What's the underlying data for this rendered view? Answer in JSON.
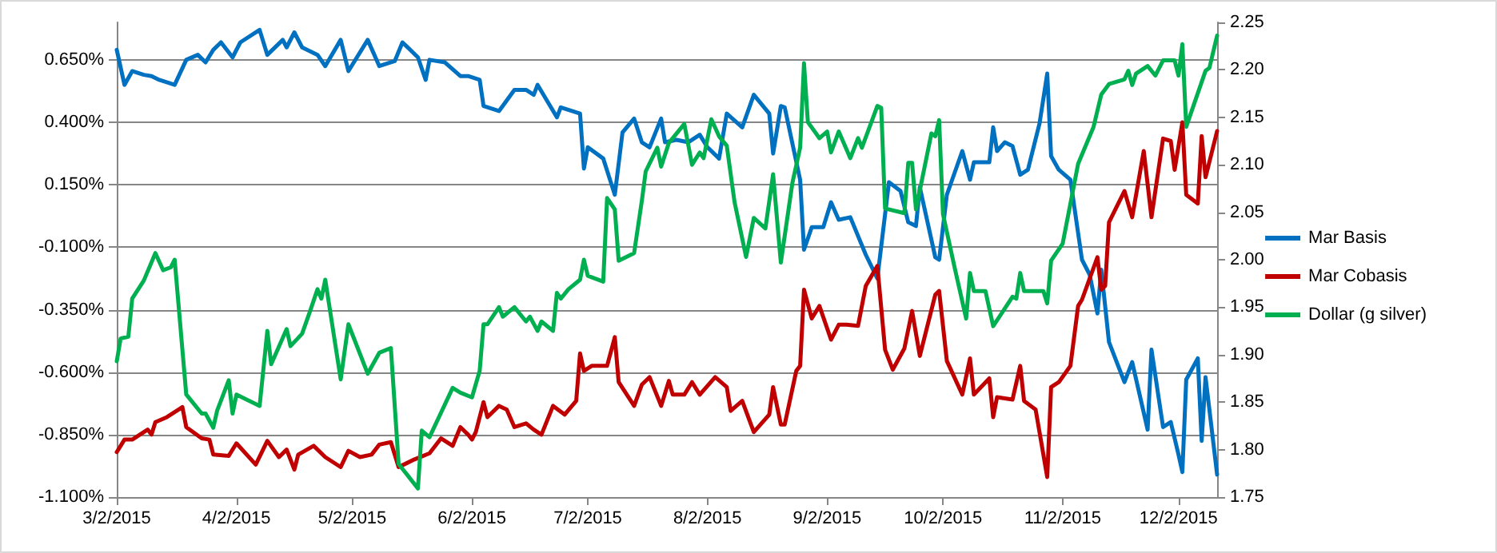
{
  "chart_data": {
    "type": "line",
    "marker": "none",
    "line_style": "solid",
    "grid": "y",
    "legend": "right",
    "xlim": [
      "2015-03-02",
      "2015-12-12"
    ],
    "xticks": [
      {
        "value": "2015-03-02",
        "label": "3/2/2015"
      },
      {
        "value": "2015-04-02",
        "label": "4/2/2015"
      },
      {
        "value": "2015-05-02",
        "label": "5/2/2015"
      },
      {
        "value": "2015-06-02",
        "label": "6/2/2015"
      },
      {
        "value": "2015-07-02",
        "label": "7/2/2015"
      },
      {
        "value": "2015-08-02",
        "label": "8/2/2015"
      },
      {
        "value": "2015-09-02",
        "label": "9/2/2015"
      },
      {
        "value": "2015-10-02",
        "label": "10/2/2015"
      },
      {
        "value": "2015-11-02",
        "label": "11/2/2015"
      },
      {
        "value": "2015-12-02",
        "label": "12/2/2015"
      }
    ],
    "ylim": [
      -1.1,
      0.8
    ],
    "yticks": [
      {
        "value": -1.1,
        "label": "-1.100%"
      },
      {
        "value": -0.85,
        "label": "-0.850%"
      },
      {
        "value": -0.6,
        "label": "-0.600%"
      },
      {
        "value": -0.35,
        "label": "-0.350%"
      },
      {
        "value": -0.1,
        "label": "-0.100%"
      },
      {
        "value": 0.15,
        "label": "0.150%"
      },
      {
        "value": 0.4,
        "label": "0.400%"
      },
      {
        "value": 0.65,
        "label": "0.650%"
      }
    ],
    "y2lim": [
      1.75,
      2.25
    ],
    "y2ticks": [
      {
        "value": 1.75,
        "label": "1.75"
      },
      {
        "value": 1.8,
        "label": "1.80"
      },
      {
        "value": 1.85,
        "label": "1.85"
      },
      {
        "value": 1.9,
        "label": "1.90"
      },
      {
        "value": 1.95,
        "label": "1.95"
      },
      {
        "value": 2.0,
        "label": "2.00"
      },
      {
        "value": 2.05,
        "label": "2.05"
      },
      {
        "value": 2.1,
        "label": "2.10"
      },
      {
        "value": 2.15,
        "label": "2.15"
      },
      {
        "value": 2.2,
        "label": "2.20"
      },
      {
        "value": 2.25,
        "label": "2.25"
      }
    ],
    "series": [
      {
        "name": "Mar Basis",
        "color": "#0070c0",
        "x": [
          "2015-03-02",
          "2015-03-04",
          "2015-03-06",
          "2015-03-09",
          "2015-03-11",
          "2015-03-13",
          "2015-03-17",
          "2015-03-20",
          "2015-03-23",
          "2015-03-25",
          "2015-03-27",
          "2015-03-29",
          "2015-04-01",
          "2015-04-03",
          "2015-04-08",
          "2015-04-10",
          "2015-04-14",
          "2015-04-15",
          "2015-04-17",
          "2015-04-19",
          "2015-04-23",
          "2015-04-25",
          "2015-04-29",
          "2015-05-01",
          "2015-05-06",
          "2015-05-09",
          "2015-05-13",
          "2015-05-15",
          "2015-05-19",
          "2015-05-21",
          "2015-05-22",
          "2015-05-26",
          "2015-05-30",
          "2015-06-01",
          "2015-06-04",
          "2015-06-05",
          "2015-06-09",
          "2015-06-13",
          "2015-06-16",
          "2015-06-18",
          "2015-06-19",
          "2015-06-24",
          "2015-06-25",
          "2015-06-30",
          "2015-07-01",
          "2015-07-02",
          "2015-07-06",
          "2015-07-09",
          "2015-07-11",
          "2015-07-14",
          "2015-07-16",
          "2015-07-18",
          "2015-07-21",
          "2015-07-22",
          "2015-07-25",
          "2015-07-28",
          "2015-07-31",
          "2015-08-02",
          "2015-08-05",
          "2015-08-07",
          "2015-08-11",
          "2015-08-14",
          "2015-08-18",
          "2015-08-19",
          "2015-08-21",
          "2015-08-22",
          "2015-08-26",
          "2015-08-27",
          "2015-08-29",
          "2015-09-01",
          "2015-09-03",
          "2015-09-05",
          "2015-09-08",
          "2015-09-12",
          "2015-09-15",
          "2015-09-18",
          "2015-09-21",
          "2015-09-23",
          "2015-09-25",
          "2015-09-26",
          "2015-09-30",
          "2015-10-01",
          "2015-10-03",
          "2015-10-07",
          "2015-10-09",
          "2015-10-10",
          "2015-10-14",
          "2015-10-15",
          "2015-10-16",
          "2015-10-18",
          "2015-10-20",
          "2015-10-22",
          "2015-10-24",
          "2015-10-27",
          "2015-10-29",
          "2015-10-30",
          "2015-11-01",
          "2015-11-04",
          "2015-11-07",
          "2015-11-09",
          "2015-11-11",
          "2015-11-12",
          "2015-11-14",
          "2015-11-18",
          "2015-11-20",
          "2015-11-24",
          "2015-11-25",
          "2015-11-28",
          "2015-11-30",
          "2015-12-02",
          "2015-12-03",
          "2015-12-04",
          "2015-12-07",
          "2015-12-08",
          "2015-12-09",
          "2015-12-12"
        ],
        "values": [
          0.69,
          0.55,
          0.605,
          0.59,
          0.585,
          0.57,
          0.55,
          0.65,
          0.67,
          0.64,
          0.69,
          0.72,
          0.66,
          0.72,
          0.77,
          0.67,
          0.73,
          0.7,
          0.76,
          0.7,
          0.67,
          0.625,
          0.73,
          0.605,
          0.73,
          0.625,
          0.645,
          0.72,
          0.66,
          0.57,
          0.65,
          0.64,
          0.585,
          0.585,
          0.57,
          0.465,
          0.445,
          0.53,
          0.53,
          0.51,
          0.55,
          0.42,
          0.46,
          0.435,
          0.215,
          0.3,
          0.255,
          0.11,
          0.36,
          0.415,
          0.32,
          0.3,
          0.415,
          0.32,
          0.33,
          0.32,
          0.35,
          0.3,
          0.255,
          0.435,
          0.38,
          0.51,
          0.435,
          0.275,
          0.465,
          0.46,
          0.17,
          -0.11,
          -0.02,
          -0.02,
          0.08,
          0.01,
          0.02,
          -0.13,
          -0.225,
          0.16,
          0.125,
          0.0,
          -0.015,
          0.14,
          -0.14,
          -0.15,
          0.11,
          0.285,
          0.17,
          0.24,
          0.24,
          0.38,
          0.285,
          0.32,
          0.305,
          0.19,
          0.21,
          0.395,
          0.595,
          0.265,
          0.21,
          0.17,
          -0.15,
          -0.21,
          -0.365,
          -0.19,
          -0.48,
          -0.64,
          -0.56,
          -0.83,
          -0.51,
          -0.82,
          -0.8,
          -0.93,
          -1.0,
          -0.63,
          -0.545,
          -0.875,
          -0.62,
          -1.01
        ]
      },
      {
        "name": "Mar Cobasis",
        "color": "#c00000",
        "x": [
          "2015-03-02",
          "2015-03-04",
          "2015-03-06",
          "2015-03-10",
          "2015-03-11",
          "2015-03-12",
          "2015-03-15",
          "2015-03-19",
          "2015-03-20",
          "2015-03-24",
          "2015-03-26",
          "2015-03-27",
          "2015-03-31",
          "2015-04-02",
          "2015-04-07",
          "2015-04-10",
          "2015-04-13",
          "2015-04-15",
          "2015-04-17",
          "2015-04-18",
          "2015-04-22",
          "2015-04-25",
          "2015-04-29",
          "2015-05-01",
          "2015-05-04",
          "2015-05-07",
          "2015-05-09",
          "2015-05-12",
          "2015-05-14",
          "2015-05-18",
          "2015-05-22",
          "2015-05-25",
          "2015-05-28",
          "2015-05-30",
          "2015-06-01",
          "2015-06-02",
          "2015-06-03",
          "2015-06-05",
          "2015-06-06",
          "2015-06-09",
          "2015-06-11",
          "2015-06-13",
          "2015-06-16",
          "2015-06-18",
          "2015-06-20",
          "2015-06-23",
          "2015-06-26",
          "2015-06-29",
          "2015-06-30",
          "2015-07-01",
          "2015-07-03",
          "2015-07-07",
          "2015-07-09",
          "2015-07-10",
          "2015-07-14",
          "2015-07-16",
          "2015-07-18",
          "2015-07-21",
          "2015-07-23",
          "2015-07-24",
          "2015-07-27",
          "2015-07-29",
          "2015-07-31",
          "2015-08-04",
          "2015-08-07",
          "2015-08-08",
          "2015-08-11",
          "2015-08-14",
          "2015-08-18",
          "2015-08-19",
          "2015-08-21",
          "2015-08-22",
          "2015-08-25",
          "2015-08-26",
          "2015-08-27",
          "2015-08-29",
          "2015-08-31",
          "2015-09-03",
          "2015-09-05",
          "2015-09-07",
          "2015-09-10",
          "2015-09-12",
          "2015-09-15",
          "2015-09-17",
          "2015-09-19",
          "2015-09-22",
          "2015-09-24",
          "2015-09-26",
          "2015-09-30",
          "2015-10-01",
          "2015-10-03",
          "2015-10-07",
          "2015-10-09",
          "2015-10-10",
          "2015-10-14",
          "2015-10-15",
          "2015-10-16",
          "2015-10-20",
          "2015-10-22",
          "2015-10-23",
          "2015-10-26",
          "2015-10-29",
          "2015-10-30",
          "2015-11-01",
          "2015-11-04",
          "2015-11-06",
          "2015-11-07",
          "2015-11-11",
          "2015-11-12",
          "2015-11-13",
          "2015-11-14",
          "2015-11-18",
          "2015-11-20",
          "2015-11-23",
          "2015-11-25",
          "2015-11-28",
          "2015-11-30",
          "2015-12-01",
          "2015-12-03",
          "2015-12-04",
          "2015-12-07",
          "2015-12-08",
          "2015-12-09",
          "2015-12-12"
        ],
        "values": [
          -0.92,
          -0.87,
          -0.87,
          -0.83,
          -0.85,
          -0.8,
          -0.78,
          -0.74,
          -0.82,
          -0.865,
          -0.87,
          -0.93,
          -0.935,
          -0.885,
          -0.97,
          -0.875,
          -0.94,
          -0.91,
          -0.99,
          -0.93,
          -0.895,
          -0.94,
          -0.98,
          -0.915,
          -0.94,
          -0.93,
          -0.89,
          -0.88,
          -0.98,
          -0.95,
          -0.925,
          -0.865,
          -0.895,
          -0.82,
          -0.85,
          -0.87,
          -0.84,
          -0.72,
          -0.78,
          -0.735,
          -0.75,
          -0.82,
          -0.805,
          -0.83,
          -0.85,
          -0.735,
          -0.77,
          -0.715,
          -0.525,
          -0.595,
          -0.575,
          -0.575,
          -0.46,
          -0.64,
          -0.735,
          -0.65,
          -0.62,
          -0.735,
          -0.635,
          -0.69,
          -0.69,
          -0.64,
          -0.69,
          -0.62,
          -0.66,
          -0.755,
          -0.715,
          -0.84,
          -0.77,
          -0.66,
          -0.81,
          -0.81,
          -0.595,
          -0.575,
          -0.27,
          -0.385,
          -0.335,
          -0.47,
          -0.41,
          -0.41,
          -0.415,
          -0.255,
          -0.175,
          -0.51,
          -0.59,
          -0.505,
          -0.355,
          -0.535,
          -0.29,
          -0.275,
          -0.555,
          -0.69,
          -0.545,
          -0.69,
          -0.625,
          -0.78,
          -0.7,
          -0.71,
          -0.575,
          -0.715,
          -0.75,
          -1.02,
          -0.66,
          -0.64,
          -0.575,
          -0.335,
          -0.31,
          -0.14,
          -0.27,
          -0.255,
          0.0,
          0.125,
          0.02,
          0.285,
          0.02,
          0.335,
          0.325,
          0.21,
          0.4,
          0.11,
          0.075,
          0.345,
          0.18,
          0.365
        ]
      },
      {
        "name": "Dollar (g silver)",
        "color": "#00b050",
        "axis": "y2",
        "x": [
          "2015-03-02",
          "2015-03-03",
          "2015-03-05",
          "2015-03-06",
          "2015-03-09",
          "2015-03-12",
          "2015-03-14",
          "2015-03-16",
          "2015-03-17",
          "2015-03-20",
          "2015-03-24",
          "2015-03-25",
          "2015-03-27",
          "2015-03-28",
          "2015-03-31",
          "2015-04-01",
          "2015-04-02",
          "2015-04-08",
          "2015-04-10",
          "2015-04-11",
          "2015-04-15",
          "2015-04-16",
          "2015-04-19",
          "2015-04-21",
          "2015-04-23",
          "2015-04-24",
          "2015-04-25",
          "2015-04-29",
          "2015-05-01",
          "2015-05-06",
          "2015-05-09",
          "2015-05-12",
          "2015-05-14",
          "2015-05-19",
          "2015-05-20",
          "2015-05-22",
          "2015-05-28",
          "2015-05-30",
          "2015-06-02",
          "2015-06-04",
          "2015-06-05",
          "2015-06-06",
          "2015-06-09",
          "2015-06-10",
          "2015-06-13",
          "2015-06-16",
          "2015-06-17",
          "2015-06-19",
          "2015-06-20",
          "2015-06-23",
          "2015-06-24",
          "2015-06-25",
          "2015-06-27",
          "2015-06-30",
          "2015-07-01",
          "2015-07-02",
          "2015-07-06",
          "2015-07-07",
          "2015-07-09",
          "2015-07-10",
          "2015-07-14",
          "2015-07-16",
          "2015-07-17",
          "2015-07-20",
          "2015-07-21",
          "2015-07-23",
          "2015-07-27",
          "2015-07-29",
          "2015-07-31",
          "2015-08-01",
          "2015-08-03",
          "2015-08-05",
          "2015-08-07",
          "2015-08-09",
          "2015-08-12",
          "2015-08-14",
          "2015-08-17",
          "2015-08-19",
          "2015-08-21",
          "2015-08-24",
          "2015-08-26",
          "2015-08-27",
          "2015-08-28",
          "2015-08-31",
          "2015-09-02",
          "2015-09-03",
          "2015-09-05",
          "2015-09-08",
          "2015-09-10",
          "2015-09-11",
          "2015-09-15",
          "2015-09-16",
          "2015-09-17",
          "2015-09-22",
          "2015-09-23",
          "2015-09-24",
          "2015-09-25",
          "2015-09-29",
          "2015-09-30",
          "2015-10-01",
          "2015-10-02",
          "2015-10-05",
          "2015-10-08",
          "2015-10-09",
          "2015-10-10",
          "2015-10-13",
          "2015-10-15",
          "2015-10-20",
          "2015-10-21",
          "2015-10-22",
          "2015-10-23",
          "2015-10-28",
          "2015-10-29",
          "2015-10-30",
          "2015-11-02",
          "2015-11-06",
          "2015-11-10",
          "2015-11-12",
          "2015-11-14",
          "2015-11-18",
          "2015-11-19",
          "2015-11-20",
          "2015-11-21",
          "2015-11-24",
          "2015-11-26",
          "2015-11-28",
          "2015-12-01",
          "2015-12-02",
          "2015-12-03",
          "2015-12-04",
          "2015-12-09",
          "2015-12-10",
          "2015-12-12"
        ],
        "values": [
          1.893,
          1.917,
          1.919,
          1.959,
          1.978,
          2.007,
          1.989,
          1.992,
          2.0,
          1.858,
          1.838,
          1.838,
          1.823,
          1.841,
          1.873,
          1.838,
          1.858,
          1.846,
          1.925,
          1.89,
          1.927,
          1.909,
          1.922,
          1.945,
          1.969,
          1.959,
          1.979,
          1.874,
          1.932,
          1.88,
          1.902,
          1.907,
          1.785,
          1.759,
          1.82,
          1.813,
          1.865,
          1.86,
          1.855,
          1.883,
          1.932,
          1.932,
          1.95,
          1.94,
          1.95,
          1.935,
          1.94,
          1.925,
          1.935,
          1.925,
          1.965,
          1.959,
          1.969,
          1.979,
          2.0,
          1.983,
          1.977,
          2.065,
          2.053,
          1.999,
          2.007,
          2.062,
          2.093,
          2.118,
          2.098,
          2.123,
          2.143,
          2.1,
          2.113,
          2.107,
          2.148,
          2.13,
          2.12,
          2.061,
          2.003,
          2.044,
          2.033,
          2.09,
          1.997,
          2.081,
          2.118,
          2.207,
          2.145,
          2.128,
          2.135,
          2.113,
          2.135,
          2.107,
          2.128,
          2.118,
          2.162,
          2.16,
          2.054,
          2.049,
          2.102,
          2.102,
          2.053,
          2.133,
          2.13,
          2.147,
          2.048,
          1.992,
          1.938,
          1.986,
          1.967,
          1.967,
          1.93,
          1.961,
          1.959,
          1.986,
          1.967,
          1.967,
          1.954,
          1.999,
          2.017,
          2.101,
          2.14,
          2.174,
          2.185,
          2.19,
          2.199,
          2.184,
          2.196,
          2.204,
          2.194,
          2.21,
          2.21,
          2.194,
          2.227,
          2.14,
          2.199,
          2.202,
          2.236
        ]
      }
    ]
  }
}
